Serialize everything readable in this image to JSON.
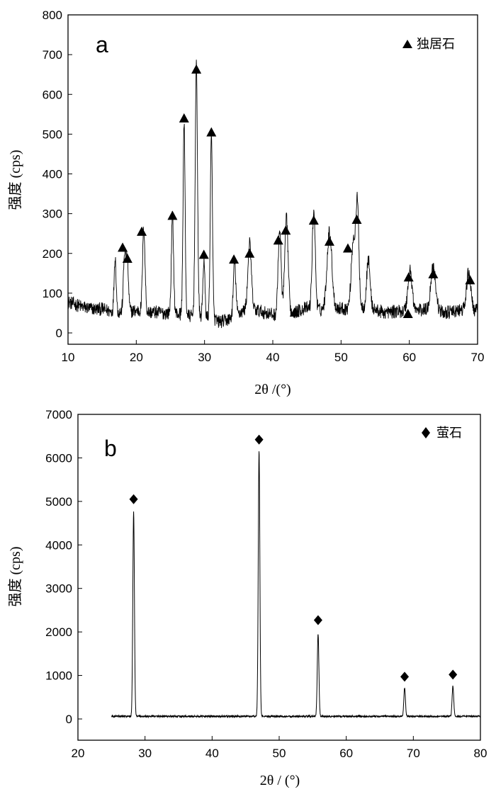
{
  "chart_data": [
    {
      "type": "line",
      "panel_label": "a",
      "xlabel": "2θ /(°)",
      "ylabel": "强度 (cps)",
      "xlim": [
        10,
        70
      ],
      "ylim": [
        -30,
        800
      ],
      "x_ticks": [
        10,
        20,
        30,
        40,
        50,
        60,
        70
      ],
      "y_ticks": [
        0,
        100,
        200,
        300,
        400,
        500,
        600,
        700,
        800
      ],
      "legend": {
        "marker": "triangle",
        "label": "独居石",
        "placement": "top-right"
      },
      "line_color": "#000000",
      "baseline": [
        [
          10,
          78
        ],
        [
          11,
          72
        ],
        [
          12,
          66
        ],
        [
          13,
          62
        ],
        [
          14,
          60
        ],
        [
          15,
          60
        ],
        [
          16,
          55
        ],
        [
          17,
          52
        ],
        [
          18,
          52
        ],
        [
          19,
          54
        ],
        [
          20,
          56
        ],
        [
          21,
          54
        ],
        [
          22,
          52
        ],
        [
          23,
          52
        ],
        [
          24,
          50
        ],
        [
          25,
          50
        ],
        [
          26,
          48
        ],
        [
          27,
          46
        ],
        [
          28,
          42
        ],
        [
          29,
          40
        ],
        [
          30,
          40
        ],
        [
          31,
          36
        ],
        [
          32,
          28
        ],
        [
          33,
          30
        ],
        [
          34,
          38
        ],
        [
          35,
          50
        ],
        [
          36,
          58
        ],
        [
          37,
          60
        ],
        [
          38,
          55
        ],
        [
          39,
          50
        ],
        [
          40,
          46
        ],
        [
          41,
          44
        ],
        [
          42,
          46
        ],
        [
          43,
          50
        ],
        [
          44,
          58
        ],
        [
          45,
          62
        ],
        [
          46,
          60
        ],
        [
          47,
          58
        ],
        [
          48,
          60
        ],
        [
          49,
          62
        ],
        [
          50,
          62
        ],
        [
          51,
          60
        ],
        [
          52,
          58
        ],
        [
          53,
          62
        ],
        [
          54,
          65
        ],
        [
          55,
          58
        ],
        [
          56,
          52
        ],
        [
          57,
          52
        ],
        [
          58,
          54
        ],
        [
          59,
          55
        ],
        [
          60,
          56
        ],
        [
          61,
          57
        ],
        [
          62,
          58
        ],
        [
          63,
          58
        ],
        [
          64,
          56
        ],
        [
          65,
          52
        ],
        [
          66,
          52
        ],
        [
          67,
          55
        ],
        [
          68,
          58
        ],
        [
          69,
          57
        ],
        [
          70,
          56
        ]
      ],
      "peaks": [
        {
          "x": 16.9,
          "h": 140,
          "w": 0.15
        },
        {
          "x": 18.3,
          "h": 150,
          "w": 0.18
        },
        {
          "x": 18.7,
          "h": 120,
          "w": 0.16
        },
        {
          "x": 21.1,
          "h": 210,
          "w": 0.18
        },
        {
          "x": 25.3,
          "h": 245,
          "w": 0.16
        },
        {
          "x": 27.0,
          "h": 480,
          "w": 0.15
        },
        {
          "x": 28.8,
          "h": 630,
          "w": 0.17
        },
        {
          "x": 29.9,
          "h": 140,
          "w": 0.15
        },
        {
          "x": 31.0,
          "h": 455,
          "w": 0.16
        },
        {
          "x": 34.4,
          "h": 135,
          "w": 0.18
        },
        {
          "x": 36.6,
          "h": 165,
          "w": 0.25
        },
        {
          "x": 41.0,
          "h": 215,
          "w": 0.22
        },
        {
          "x": 42.0,
          "h": 240,
          "w": 0.25
        },
        {
          "x": 46.0,
          "h": 250,
          "w": 0.22
        },
        {
          "x": 48.3,
          "h": 195,
          "w": 0.35
        },
        {
          "x": 51.8,
          "h": 175,
          "w": 0.3
        },
        {
          "x": 52.4,
          "h": 252,
          "w": 0.22
        },
        {
          "x": 54.0,
          "h": 120,
          "w": 0.25
        },
        {
          "x": 60.1,
          "h": 102,
          "w": 0.3
        },
        {
          "x": 63.5,
          "h": 112,
          "w": 0.35
        },
        {
          "x": 68.7,
          "h": 95,
          "w": 0.3
        }
      ],
      "markers": [
        [
          18.0,
          215
        ],
        [
          18.7,
          187
        ],
        [
          20.8,
          255
        ],
        [
          25.3,
          295
        ],
        [
          27.0,
          540
        ],
        [
          28.8,
          663
        ],
        [
          29.9,
          197
        ],
        [
          31.0,
          505
        ],
        [
          34.3,
          185
        ],
        [
          36.6,
          200
        ],
        [
          40.8,
          233
        ],
        [
          41.9,
          258
        ],
        [
          43.2,
          52
        ],
        [
          46.0,
          283
        ],
        [
          48.3,
          230
        ],
        [
          51.0,
          213
        ],
        [
          52.3,
          285
        ],
        [
          59.9,
          140
        ],
        [
          59.8,
          48
        ],
        [
          63.5,
          148
        ],
        [
          68.9,
          133
        ]
      ]
    },
    {
      "type": "line",
      "panel_label": "b",
      "xlabel": "2θ / (°)",
      "ylabel": "强度 (cps)",
      "xlim": [
        20,
        80
      ],
      "ylim": [
        -300,
        7000
      ],
      "x_ticks": [
        20,
        30,
        40,
        50,
        60,
        70,
        80
      ],
      "y_ticks": [
        0,
        1000,
        2000,
        3000,
        4000,
        5000,
        6000,
        7000
      ],
      "legend": {
        "marker": "diamond",
        "label": "萤石",
        "placement": "top-right"
      },
      "line_color": "#000000",
      "x_start": 25,
      "baseline_level": 60,
      "peaks": [
        {
          "x": 28.3,
          "h": 4700,
          "w": 0.12
        },
        {
          "x": 47.0,
          "h": 6100,
          "w": 0.12
        },
        {
          "x": 55.8,
          "h": 1900,
          "w": 0.12
        },
        {
          "x": 68.7,
          "h": 660,
          "w": 0.12
        },
        {
          "x": 75.9,
          "h": 700,
          "w": 0.12
        }
      ],
      "markers": [
        [
          28.3,
          5050
        ],
        [
          47.0,
          6420
        ],
        [
          55.8,
          2270
        ],
        [
          68.7,
          970
        ],
        [
          75.9,
          1020
        ]
      ]
    }
  ]
}
